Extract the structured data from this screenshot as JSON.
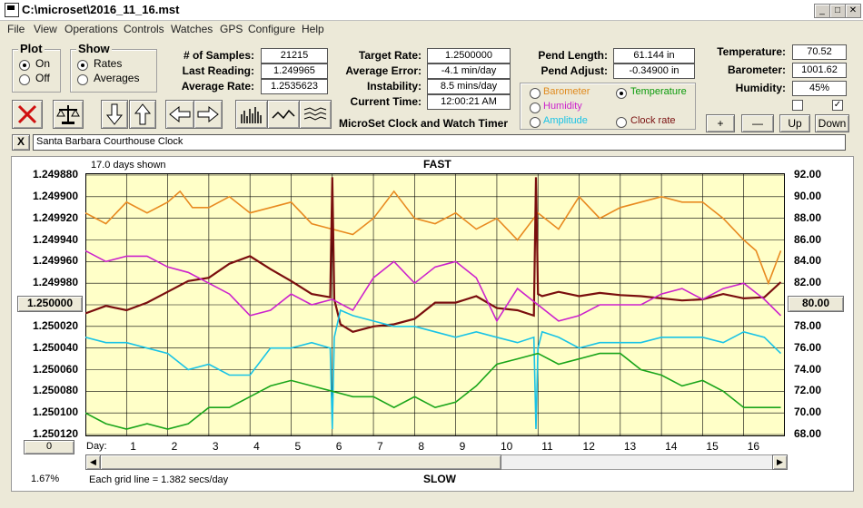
{
  "window": {
    "title": "C:\\microset\\2016_11_16.mst"
  },
  "menu": [
    "File",
    "View",
    "Operations",
    "Controls",
    "Watches",
    "GPS",
    "Configure",
    "Help"
  ],
  "plot_group": {
    "title": "Plot",
    "on": "On",
    "off": "Off",
    "selected": "On"
  },
  "show_group": {
    "title": "Show",
    "rates": "Rates",
    "averages": "Averages",
    "selected": "Rates"
  },
  "stats": {
    "samples_label": "# of Samples:",
    "samples": "21215",
    "last_label": "Last Reading:",
    "last": "1.249965",
    "avg_label": "Average Rate:",
    "avg": "1.2535623",
    "target_label": "Target Rate:",
    "target": "1.2500000",
    "avgerr_label": "Average Error:",
    "avgerr": "-4.1 min/day",
    "instab_label": "Instability:",
    "instab": "8.5 mins/day",
    "time_label": "Current Time:",
    "time": "12:00:21 AM",
    "pendlen_label": "Pend Length:",
    "pendlen": "61.144 in",
    "pendadj_label": "Pend Adjust:",
    "pendadj": "-0.34900 in",
    "temp_label": "Temperature:",
    "temp": "70.52",
    "baro_label": "Barometer:",
    "baro": "1001.62",
    "hum_label": "Humidity:",
    "hum": "45%"
  },
  "app_title": "MicroSet Clock and Watch Timer",
  "sensor_options": [
    {
      "label": "Barometer",
      "color": "#e08a1e",
      "selected": false
    },
    {
      "label": "Temperature",
      "color": "#0a9a0a",
      "selected": true
    },
    {
      "label": "Humidity",
      "color": "#cc22cc",
      "selected": false
    },
    {
      "label": "Clock rate",
      "color": "#7a1010",
      "selected": false
    },
    {
      "label": "Amplitude",
      "color": "#19c3e6",
      "selected": false
    }
  ],
  "adjust_buttons": {
    "plus": "+",
    "minus": "—",
    "up": "Up",
    "down": "Down"
  },
  "checkboxes": [
    {
      "checked": false
    },
    {
      "checked": true
    }
  ],
  "clock_name": "Santa Barbara Courthouse Clock",
  "close_x": "X",
  "chart_header": {
    "days_shown": "17.0 days shown",
    "fast": "FAST",
    "slow": "SLOW",
    "grid_note": "Each grid line = 1.382 secs/day",
    "percent": "1.67%",
    "day_label": "Day:",
    "left_button": "1.250000",
    "right_button": "80.00",
    "bottom_button": "0"
  },
  "chart_data": {
    "type": "line",
    "x_range": [
      0,
      17
    ],
    "x_ticks": [
      1,
      2,
      3,
      4,
      5,
      6,
      7,
      8,
      9,
      10,
      11,
      12,
      13,
      14,
      15,
      16
    ],
    "left_axis": {
      "ticks": [
        "1.249880",
        "1.249900",
        "1.249920",
        "1.249940",
        "1.249960",
        "1.249980",
        "1.250000",
        "1.250020",
        "1.250040",
        "1.250060",
        "1.250080",
        "1.250100",
        "1.250120"
      ],
      "range": [
        1.24988,
        1.25012
      ],
      "inverted": true
    },
    "right_axis": {
      "ticks": [
        "92.00",
        "90.00",
        "88.00",
        "86.00",
        "84.00",
        "82.00",
        "80.00",
        "78.00",
        "76.00",
        "74.00",
        "72.00",
        "70.00",
        "68.00"
      ],
      "range": [
        68,
        92
      ]
    },
    "series": [
      {
        "color": "#e88a20",
        "right_units": true,
        "x": [
          0,
          0.5,
          1,
          1.5,
          2,
          2.3,
          2.6,
          3,
          3.5,
          4,
          4.5,
          5,
          5.5,
          6,
          6.5,
          7,
          7.5,
          8,
          8.5,
          9,
          9.5,
          10,
          10.5,
          11,
          11.5,
          12,
          12.5,
          13,
          13.5,
          14,
          14.5,
          15,
          15.5,
          16,
          16.3,
          16.6,
          16.9
        ],
        "y": [
          88.5,
          87.5,
          89.5,
          88.5,
          89.5,
          90.5,
          89,
          89,
          90,
          88.5,
          89,
          89.5,
          87.5,
          87,
          86.5,
          88,
          90.5,
          88,
          87.5,
          88.5,
          87,
          88,
          86,
          88.5,
          87,
          90,
          88,
          89,
          89.5,
          90,
          89.5,
          89.5,
          88,
          86,
          85,
          82,
          85
        ]
      },
      {
        "color": "#7a0e0e",
        "right_units": false,
        "x": [
          0,
          0.5,
          1,
          1.5,
          2,
          2.5,
          3,
          3.5,
          4,
          4.5,
          5,
          5.5,
          5.95,
          6.0,
          6.05,
          6.2,
          6.5,
          7,
          7.5,
          8,
          8.5,
          9,
          9.5,
          10,
          10.5,
          10.9,
          10.95,
          11.0,
          11.1,
          11.5,
          12,
          12.5,
          13,
          13.5,
          14,
          14.5,
          15,
          15.5,
          16,
          16.5,
          16.9
        ],
        "y": [
          1.250008,
          1.250001,
          1.250005,
          1.249998,
          1.249988,
          1.249978,
          1.249975,
          1.249962,
          1.249955,
          1.249967,
          1.249978,
          1.24999,
          1.249993,
          1.249882,
          1.249995,
          1.250018,
          1.250025,
          1.25002,
          1.250018,
          1.250013,
          1.249998,
          1.249998,
          1.249992,
          1.250003,
          1.250005,
          1.25001,
          1.249882,
          1.24999,
          1.249992,
          1.249988,
          1.249992,
          1.249989,
          1.249991,
          1.249992,
          1.249994,
          1.249996,
          1.249995,
          1.24999,
          1.249994,
          1.249993,
          1.249979
        ]
      },
      {
        "color": "#cc22cc",
        "right_units": true,
        "x": [
          0,
          0.5,
          1,
          1.5,
          2,
          2.5,
          3,
          3.5,
          4,
          4.5,
          5,
          5.5,
          6,
          6.5,
          7,
          7.5,
          8,
          8.5,
          9,
          9.5,
          10,
          10.5,
          11,
          11.5,
          12,
          12.5,
          13,
          13.5,
          14,
          14.5,
          15,
          15.5,
          16,
          16.5,
          16.9
        ],
        "y": [
          85,
          84,
          84.5,
          84.5,
          83.5,
          83,
          82,
          81,
          79,
          79.5,
          81,
          80,
          80.5,
          79.5,
          82.5,
          84,
          82,
          83.5,
          84,
          82.5,
          78.5,
          81.5,
          80,
          78.5,
          79,
          80,
          80,
          80,
          81,
          81.5,
          80.5,
          81.5,
          82,
          80.5,
          79
        ]
      },
      {
        "color": "#19c3e6",
        "right_units": true,
        "x": [
          0,
          0.5,
          1,
          1.5,
          2,
          2.5,
          3,
          3.5,
          4,
          4.5,
          5,
          5.5,
          5.95,
          6.0,
          6.05,
          6.2,
          6.5,
          7,
          7.5,
          8,
          8.5,
          9,
          9.5,
          10,
          10.5,
          10.9,
          10.95,
          11.0,
          11.1,
          11.5,
          12,
          12.5,
          13,
          13.5,
          14,
          14.5,
          15,
          15.5,
          16,
          16.5,
          16.9
        ],
        "y": [
          77,
          76.5,
          76.5,
          76,
          75.5,
          74,
          74.5,
          73.5,
          73.5,
          76,
          76,
          76.5,
          76,
          68.5,
          77,
          79.5,
          79,
          78.5,
          78,
          78,
          77.5,
          77,
          77.5,
          77,
          76.5,
          77,
          68.5,
          76,
          77.5,
          77,
          76,
          76.5,
          76.5,
          76.5,
          77,
          77,
          77,
          76.5,
          77.5,
          77,
          75.5
        ]
      },
      {
        "color": "#1aa51a",
        "right_units": true,
        "x": [
          0,
          0.5,
          1,
          1.5,
          2,
          2.5,
          3,
          3.5,
          4,
          4.5,
          5,
          5.5,
          6,
          6.5,
          7,
          7.5,
          8,
          8.5,
          9,
          9.5,
          10,
          10.5,
          11,
          11.5,
          12,
          12.5,
          13,
          13.5,
          14,
          14.5,
          15,
          15.5,
          16,
          16.5,
          16.9
        ],
        "y": [
          70,
          69,
          68.5,
          69,
          68.5,
          69,
          70.5,
          70.5,
          71.5,
          72.5,
          73,
          72.5,
          72,
          71.5,
          71.5,
          70.5,
          71.5,
          70.5,
          71,
          72.5,
          74.5,
          75,
          75.5,
          74.5,
          75,
          75.5,
          75.5,
          74,
          73.5,
          72.5,
          73,
          72,
          70.5,
          70.5,
          70.5
        ]
      }
    ]
  }
}
